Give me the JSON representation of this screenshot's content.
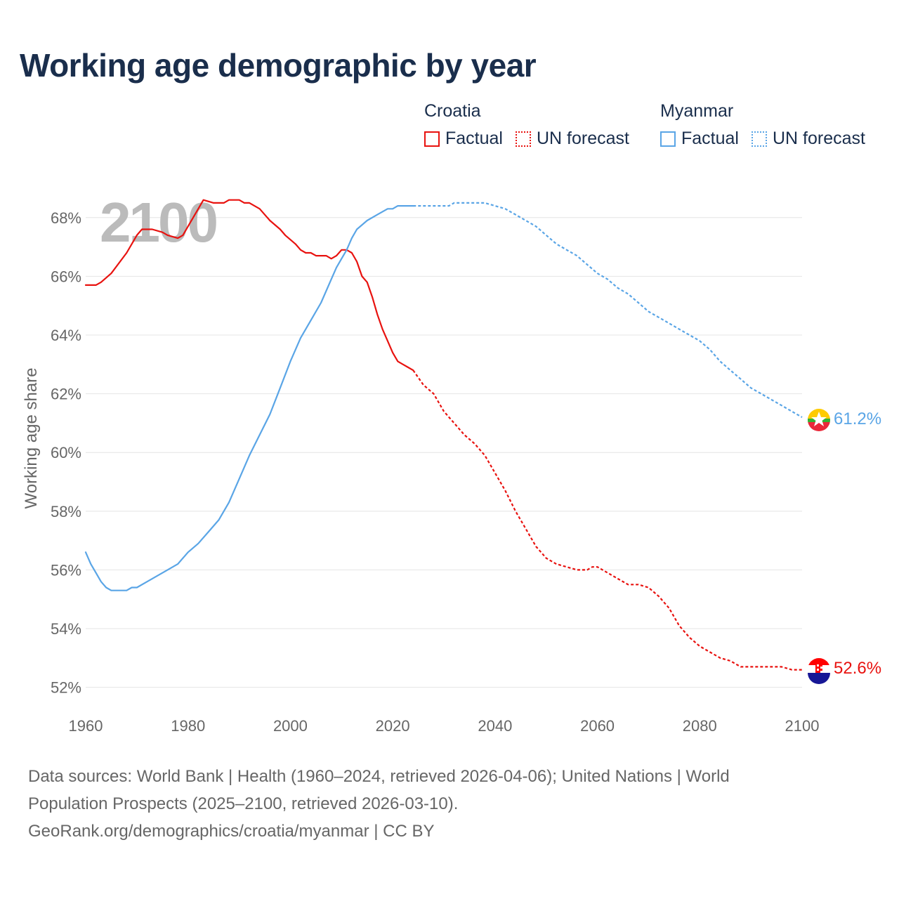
{
  "title": "Working age demographic by year",
  "legend": {
    "groups": [
      {
        "country": "Croatia",
        "factual_label": "Factual",
        "forecast_label": "UN forecast",
        "color": "#e8120f"
      },
      {
        "country": "Myanmar",
        "factual_label": "Factual",
        "forecast_label": "UN forecast",
        "color": "#5aa5e6"
      }
    ]
  },
  "footer": {
    "line1": "Data sources: World Bank | Health (1960–2024, retrieved 2026-04-06); United Nations | World",
    "line2": "Population Prospects (2025–2100, retrieved 2026-03-10).",
    "line3": "GeoRank.org/demographics/croatia/myanmar | CC BY"
  },
  "chart_data": {
    "type": "line",
    "title": "Working age demographic by year",
    "xlabel": "",
    "ylabel": "Working age share",
    "xlim": [
      1960,
      2100
    ],
    "ylim": [
      51.8,
      69
    ],
    "x_ticks": [
      1960,
      1980,
      2000,
      2020,
      2040,
      2060,
      2080,
      2100
    ],
    "y_ticks": [
      52,
      54,
      56,
      58,
      60,
      62,
      64,
      66,
      68
    ],
    "y_tick_suffix": "%",
    "current_year_label": "2100",
    "forecast_start": 2024,
    "grid": true,
    "series": [
      {
        "name": "Croatia",
        "color": "#e8120f",
        "end_label": "52.6%",
        "points": [
          [
            1960,
            65.7
          ],
          [
            1962,
            65.7
          ],
          [
            1963,
            65.8
          ],
          [
            1965,
            66.1
          ],
          [
            1968,
            66.8
          ],
          [
            1970,
            67.4
          ],
          [
            1971,
            67.6
          ],
          [
            1973,
            67.6
          ],
          [
            1975,
            67.5
          ],
          [
            1976,
            67.4
          ],
          [
            1978,
            67.3
          ],
          [
            1979,
            67.4
          ],
          [
            1980,
            67.7
          ],
          [
            1982,
            68.3
          ],
          [
            1983,
            68.6
          ],
          [
            1985,
            68.5
          ],
          [
            1987,
            68.5
          ],
          [
            1988,
            68.6
          ],
          [
            1990,
            68.6
          ],
          [
            1991,
            68.5
          ],
          [
            1992,
            68.5
          ],
          [
            1994,
            68.3
          ],
          [
            1996,
            67.9
          ],
          [
            1998,
            67.6
          ],
          [
            1999,
            67.4
          ],
          [
            2001,
            67.1
          ],
          [
            2002,
            66.9
          ],
          [
            2003,
            66.8
          ],
          [
            2004,
            66.8
          ],
          [
            2005,
            66.7
          ],
          [
            2007,
            66.7
          ],
          [
            2008,
            66.6
          ],
          [
            2009,
            66.7
          ],
          [
            2010,
            66.9
          ],
          [
            2011,
            66.9
          ],
          [
            2012,
            66.8
          ],
          [
            2013,
            66.5
          ],
          [
            2014,
            66.0
          ],
          [
            2015,
            65.8
          ],
          [
            2016,
            65.3
          ],
          [
            2017,
            64.7
          ],
          [
            2018,
            64.2
          ],
          [
            2019,
            63.8
          ],
          [
            2020,
            63.4
          ],
          [
            2021,
            63.1
          ],
          [
            2022,
            63.0
          ],
          [
            2023,
            62.9
          ],
          [
            2024,
            62.8
          ],
          [
            2026,
            62.3
          ],
          [
            2028,
            62.0
          ],
          [
            2030,
            61.4
          ],
          [
            2032,
            61.0
          ],
          [
            2034,
            60.6
          ],
          [
            2036,
            60.3
          ],
          [
            2038,
            59.9
          ],
          [
            2040,
            59.3
          ],
          [
            2042,
            58.7
          ],
          [
            2044,
            58.0
          ],
          [
            2046,
            57.4
          ],
          [
            2048,
            56.8
          ],
          [
            2050,
            56.4
          ],
          [
            2052,
            56.2
          ],
          [
            2054,
            56.1
          ],
          [
            2056,
            56.0
          ],
          [
            2058,
            56.0
          ],
          [
            2059,
            56.1
          ],
          [
            2060,
            56.1
          ],
          [
            2062,
            55.9
          ],
          [
            2064,
            55.7
          ],
          [
            2066,
            55.5
          ],
          [
            2068,
            55.5
          ],
          [
            2070,
            55.4
          ],
          [
            2072,
            55.1
          ],
          [
            2074,
            54.7
          ],
          [
            2076,
            54.1
          ],
          [
            2078,
            53.7
          ],
          [
            2080,
            53.4
          ],
          [
            2082,
            53.2
          ],
          [
            2084,
            53.0
          ],
          [
            2086,
            52.9
          ],
          [
            2088,
            52.7
          ],
          [
            2090,
            52.7
          ],
          [
            2092,
            52.7
          ],
          [
            2094,
            52.7
          ],
          [
            2096,
            52.7
          ],
          [
            2098,
            52.6
          ],
          [
            2100,
            52.6
          ]
        ]
      },
      {
        "name": "Myanmar",
        "color": "#5aa5e6",
        "end_label": "61.2%",
        "points": [
          [
            1960,
            56.6
          ],
          [
            1961,
            56.2
          ],
          [
            1962,
            55.9
          ],
          [
            1963,
            55.6
          ],
          [
            1964,
            55.4
          ],
          [
            1965,
            55.3
          ],
          [
            1968,
            55.3
          ],
          [
            1969,
            55.4
          ],
          [
            1970,
            55.4
          ],
          [
            1972,
            55.6
          ],
          [
            1974,
            55.8
          ],
          [
            1976,
            56.0
          ],
          [
            1978,
            56.2
          ],
          [
            1980,
            56.6
          ],
          [
            1982,
            56.9
          ],
          [
            1984,
            57.3
          ],
          [
            1986,
            57.7
          ],
          [
            1988,
            58.3
          ],
          [
            1990,
            59.1
          ],
          [
            1992,
            59.9
          ],
          [
            1994,
            60.6
          ],
          [
            1996,
            61.3
          ],
          [
            1998,
            62.2
          ],
          [
            2000,
            63.1
          ],
          [
            2002,
            63.9
          ],
          [
            2004,
            64.5
          ],
          [
            2006,
            65.1
          ],
          [
            2008,
            65.9
          ],
          [
            2009,
            66.3
          ],
          [
            2010,
            66.6
          ],
          [
            2011,
            66.9
          ],
          [
            2012,
            67.3
          ],
          [
            2013,
            67.6
          ],
          [
            2015,
            67.9
          ],
          [
            2017,
            68.1
          ],
          [
            2019,
            68.3
          ],
          [
            2020,
            68.3
          ],
          [
            2021,
            68.4
          ],
          [
            2024,
            68.4
          ],
          [
            2026,
            68.4
          ],
          [
            2028,
            68.4
          ],
          [
            2030,
            68.4
          ],
          [
            2031,
            68.4
          ],
          [
            2032,
            68.5
          ],
          [
            2036,
            68.5
          ],
          [
            2038,
            68.5
          ],
          [
            2040,
            68.4
          ],
          [
            2042,
            68.3
          ],
          [
            2044,
            68.1
          ],
          [
            2046,
            67.9
          ],
          [
            2048,
            67.7
          ],
          [
            2050,
            67.4
          ],
          [
            2052,
            67.1
          ],
          [
            2054,
            66.9
          ],
          [
            2056,
            66.7
          ],
          [
            2058,
            66.4
          ],
          [
            2060,
            66.1
          ],
          [
            2062,
            65.9
          ],
          [
            2064,
            65.6
          ],
          [
            2066,
            65.4
          ],
          [
            2068,
            65.1
          ],
          [
            2070,
            64.8
          ],
          [
            2072,
            64.6
          ],
          [
            2074,
            64.4
          ],
          [
            2076,
            64.2
          ],
          [
            2078,
            64.0
          ],
          [
            2080,
            63.8
          ],
          [
            2082,
            63.5
          ],
          [
            2084,
            63.1
          ],
          [
            2086,
            62.8
          ],
          [
            2088,
            62.5
          ],
          [
            2090,
            62.2
          ],
          [
            2092,
            62.0
          ],
          [
            2094,
            61.8
          ],
          [
            2096,
            61.6
          ],
          [
            2098,
            61.4
          ],
          [
            2100,
            61.2
          ]
        ]
      }
    ]
  }
}
